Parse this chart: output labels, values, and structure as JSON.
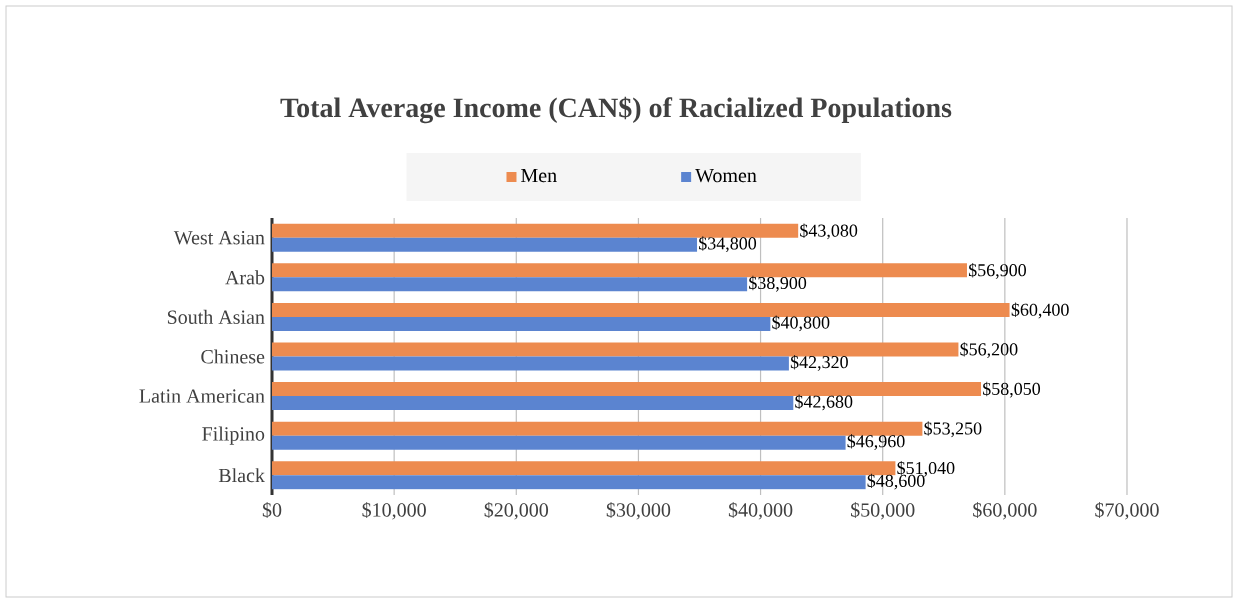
{
  "chart_data": {
    "type": "bar",
    "orientation": "horizontal",
    "title": "Total Average Income (CAN$) of Racialized Populations",
    "categories": [
      "West Asian",
      "Arab",
      "South Asian",
      "Chinese",
      "Latin American",
      "Filipino",
      "Black"
    ],
    "series": [
      {
        "name": "Men",
        "color": "#ed8b4f",
        "values": [
          43080,
          56900,
          60400,
          56200,
          58050,
          53250,
          51040
        ],
        "value_labels": [
          "$43,080",
          "$56,900",
          "$60,400",
          "$56,200",
          "$58,050",
          "$53,250",
          "$51,040"
        ]
      },
      {
        "name": "Women",
        "color": "#5b84d0",
        "values": [
          34800,
          38900,
          40800,
          42320,
          42680,
          46960,
          48600
        ],
        "value_labels": [
          "$34,800",
          "$38,900",
          "$40,800",
          "$42,320",
          "$42,680",
          "$46,960",
          "$48,600"
        ]
      }
    ],
    "xlim": [
      0,
      70000
    ],
    "xticks": [
      {
        "value": 0,
        "label": "$0"
      },
      {
        "value": 10000,
        "label": "$10,000"
      },
      {
        "value": 20000,
        "label": "$20,000"
      },
      {
        "value": 30000,
        "label": "$30,000"
      },
      {
        "value": 40000,
        "label": "$40,000"
      },
      {
        "value": 50000,
        "label": "$50,000"
      },
      {
        "value": 60000,
        "label": "$60,000"
      },
      {
        "value": 70000,
        "label": "$70,000"
      }
    ],
    "grid": "x",
    "legend": "top"
  }
}
